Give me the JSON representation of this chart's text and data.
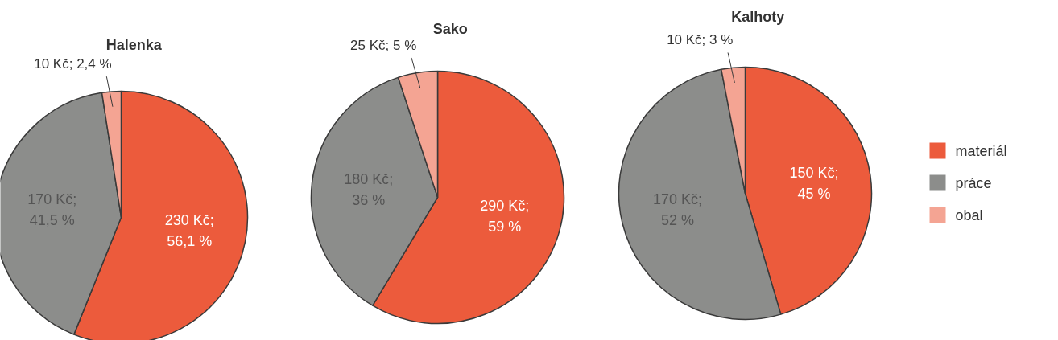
{
  "chart_data": [
    {
      "type": "pie",
      "title": "Halenka",
      "categories": [
        null,
        null,
        null
      ],
      "values": [
        230,
        170,
        10
      ],
      "colors": [
        "#ec5b3c",
        "#8c8d8b",
        "#f4a493"
      ],
      "value_labels": [
        "230 Kč; 56,1 %",
        "170 Kč; 41,5 %",
        "10 Kč; 2,4 %"
      ],
      "legend": false
    },
    {
      "type": "pie",
      "title": "Sako",
      "categories": [
        null,
        null,
        null
      ],
      "values": [
        290,
        180,
        25
      ],
      "colors": [
        "#ec5b3c",
        "#8c8d8b",
        "#f4a493"
      ],
      "value_labels": [
        "290 Kč; 59 %",
        "180 Kč; 36 %",
        "25 Kč; 5 %"
      ],
      "legend": false
    },
    {
      "type": "pie",
      "title": "Kalhoty",
      "categories": [
        "materiál",
        "práce",
        "obal"
      ],
      "values": [
        150,
        170,
        10
      ],
      "colors": [
        "#ec5b3c",
        "#8c8d8b",
        "#f4a493"
      ],
      "value_labels": [
        "150 Kč; 45 %",
        "170 Kč; 52 %",
        "10 Kč; 3 %"
      ],
      "legend": "right"
    }
  ]
}
